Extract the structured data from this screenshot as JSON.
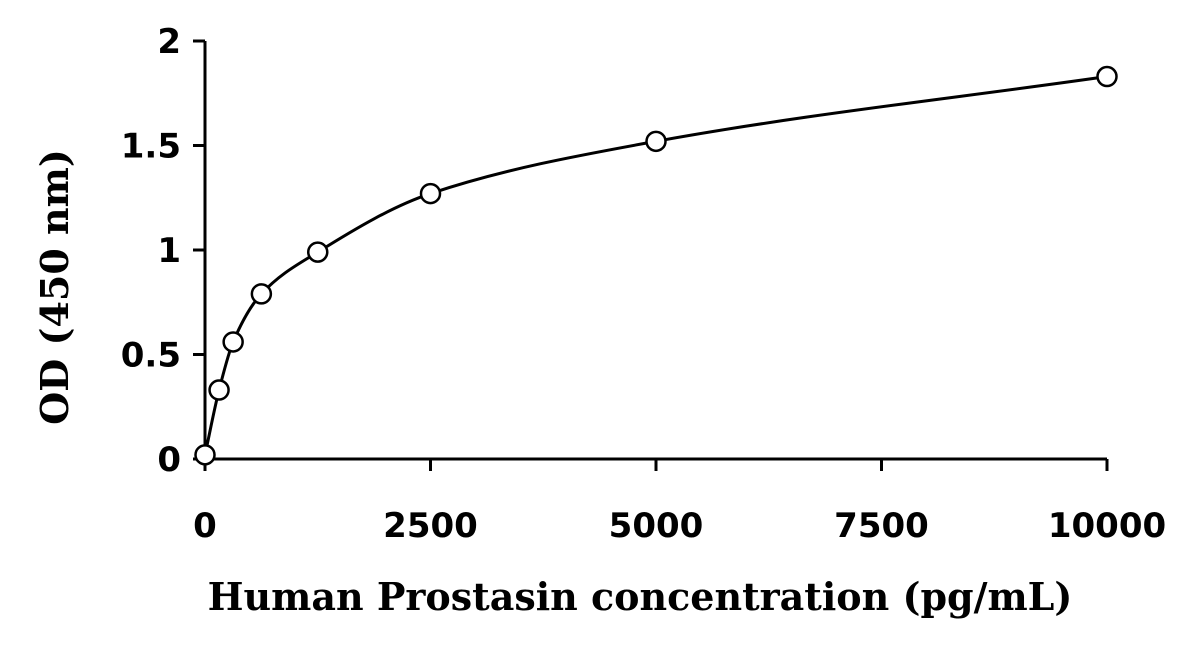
{
  "chart_data": {
    "type": "scatter",
    "title": "",
    "xlabel": "Human Prostasin concentration (pg/mL)",
    "ylabel": "OD (450 nm)",
    "xlim": [
      0,
      10000
    ],
    "ylim": [
      0,
      2
    ],
    "x_ticks": [
      0,
      2500,
      5000,
      7500,
      10000
    ],
    "x_tick_labels": [
      "0",
      "2500",
      "5000",
      "7500",
      "10000"
    ],
    "y_ticks": [
      0,
      0.5,
      1,
      1.5,
      2
    ],
    "y_tick_labels": [
      "0",
      "0.5",
      "1",
      "1.5",
      "2"
    ],
    "grid": false,
    "legend": "none",
    "series": [
      {
        "x": [
          0,
          156,
          312,
          625,
          1250,
          2500,
          5000,
          10000
        ],
        "y": [
          0.02,
          0.33,
          0.56,
          0.79,
          0.99,
          1.27,
          1.52,
          1.83
        ]
      }
    ],
    "fit_curve": true
  }
}
